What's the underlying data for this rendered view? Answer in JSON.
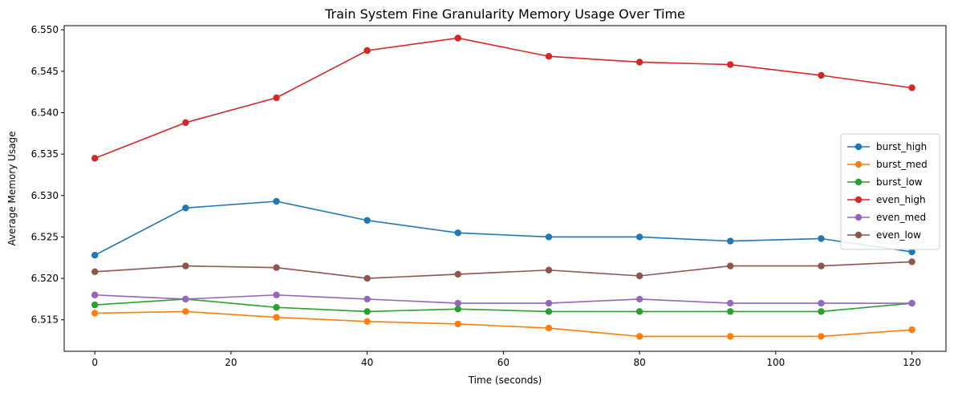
{
  "chart_data": {
    "type": "line",
    "title": "Train System Fine Granularity Memory Usage Over Time",
    "xlabel": "Time (seconds)",
    "ylabel": "Average Memory Usage",
    "xlim": [
      -4.5,
      125
    ],
    "ylim": [
      6.5112,
      6.5505
    ],
    "xticks": [
      0,
      20,
      40,
      60,
      80,
      100,
      120
    ],
    "yticks": [
      6.515,
      6.52,
      6.525,
      6.53,
      6.535,
      6.54,
      6.545,
      6.55
    ],
    "ytick_labels": [
      "6.515",
      "6.520",
      "6.525",
      "6.530",
      "6.535",
      "6.540",
      "6.545",
      "6.550"
    ],
    "grid": false,
    "legend_position": "center-right",
    "x": [
      0,
      13.33,
      26.67,
      40,
      53.33,
      66.67,
      80,
      93.33,
      106.67,
      120
    ],
    "series": [
      {
        "name": "burst_high",
        "color": "#1f77b4",
        "values": [
          6.5228,
          6.5285,
          6.5293,
          6.527,
          6.5255,
          6.525,
          6.525,
          6.5245,
          6.5248,
          6.5232
        ]
      },
      {
        "name": "burst_med",
        "color": "#ff7f0e",
        "values": [
          6.5158,
          6.516,
          6.5153,
          6.5148,
          6.5145,
          6.514,
          6.513,
          6.513,
          6.513,
          6.5138
        ]
      },
      {
        "name": "burst_low",
        "color": "#2ca02c",
        "values": [
          6.5168,
          6.5175,
          6.5165,
          6.516,
          6.5163,
          6.516,
          6.516,
          6.516,
          6.516,
          6.517
        ]
      },
      {
        "name": "even_high",
        "color": "#d62728",
        "values": [
          6.5345,
          6.5388,
          6.5418,
          6.5475,
          6.549,
          6.5468,
          6.5461,
          6.5458,
          6.5445,
          6.543
        ]
      },
      {
        "name": "even_med",
        "color": "#9467bd",
        "values": [
          6.518,
          6.5175,
          6.518,
          6.5175,
          6.517,
          6.517,
          6.5175,
          6.517,
          6.517,
          6.517
        ]
      },
      {
        "name": "even_low",
        "color": "#8c564b",
        "values": [
          6.5208,
          6.5215,
          6.5213,
          6.52,
          6.5205,
          6.521,
          6.5203,
          6.5215,
          6.5215,
          6.522
        ]
      }
    ]
  }
}
